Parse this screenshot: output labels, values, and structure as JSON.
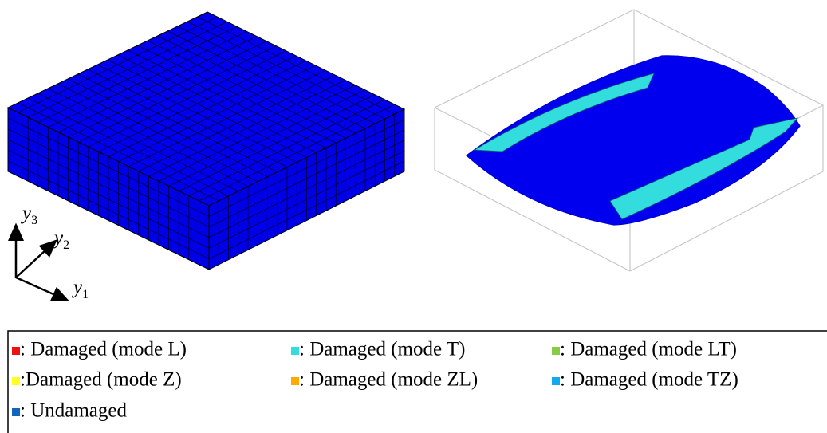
{
  "axes": [
    {
      "symbol": "y",
      "index": "3"
    },
    {
      "symbol": "y",
      "index": "2"
    },
    {
      "symbol": "y",
      "index": "1"
    }
  ],
  "legend": [
    {
      "color": "#ee1111",
      "label": ": Damaged (mode L)"
    },
    {
      "color": "#33dddd",
      "label": ": Damaged (mode T)"
    },
    {
      "color": "#88cc44",
      "label": ": Damaged (mode LT)"
    },
    {
      "color": "#ffff22",
      "label": ":Damaged (mode Z)"
    },
    {
      "color": "#ffaa00",
      "label": ": Damaged (mode ZL)"
    },
    {
      "color": "#11aaee",
      "label": ": Damaged (mode TZ)"
    },
    {
      "color": "#1166bb",
      "label": ": Undamaged"
    }
  ]
}
